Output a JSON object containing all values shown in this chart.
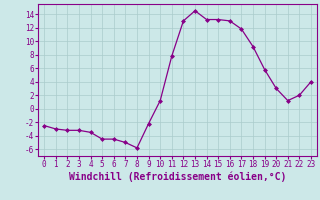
{
  "x": [
    0,
    1,
    2,
    3,
    4,
    5,
    6,
    7,
    8,
    9,
    10,
    11,
    12,
    13,
    14,
    15,
    16,
    17,
    18,
    19,
    20,
    21,
    22,
    23
  ],
  "y": [
    -2.5,
    -3.0,
    -3.2,
    -3.2,
    -3.5,
    -4.5,
    -4.5,
    -5.0,
    -5.8,
    -2.2,
    1.2,
    7.8,
    13.0,
    14.5,
    13.2,
    13.2,
    13.0,
    11.8,
    9.2,
    5.8,
    3.0,
    1.2,
    2.0,
    4.0
  ],
  "line_color": "#880088",
  "marker": "D",
  "marker_size": 2,
  "bg_color": "#cce8e8",
  "grid_color": "#aacccc",
  "xlabel": "Windchill (Refroidissement éolien,°C)",
  "ylim": [
    -7,
    15.5
  ],
  "xlim": [
    -0.5,
    23.5
  ],
  "yticks": [
    -6,
    -4,
    -2,
    0,
    2,
    4,
    6,
    8,
    10,
    12,
    14
  ],
  "xticks": [
    0,
    1,
    2,
    3,
    4,
    5,
    6,
    7,
    8,
    9,
    10,
    11,
    12,
    13,
    14,
    15,
    16,
    17,
    18,
    19,
    20,
    21,
    22,
    23
  ],
  "label_color": "#880088",
  "tick_fontsize": 5.5,
  "xlabel_fontsize": 7
}
